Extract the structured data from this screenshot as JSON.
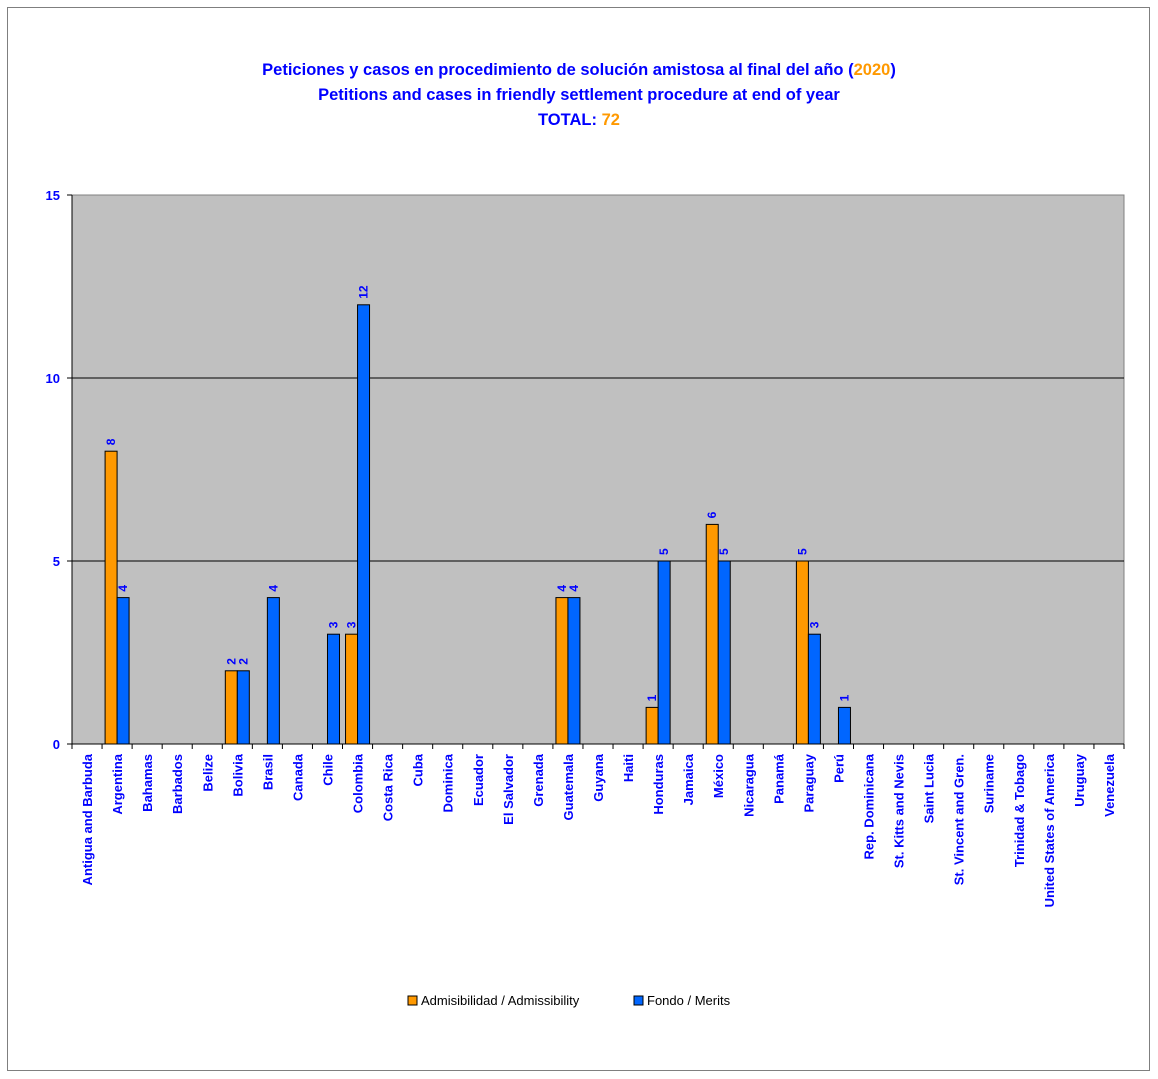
{
  "chart_data": {
    "type": "bar",
    "title_line1_prefix": "Peticiones y casos en procedimiento de solución amistosa al final del año (",
    "title_year": "2020",
    "title_line1_suffix": ")",
    "title_line2": "Petitions and cases in friendly settlement procedure at end of year",
    "total_label": "TOTAL:",
    "total_value": "72",
    "ylim": [
      0,
      15
    ],
    "yticks": [
      0,
      5,
      10,
      15
    ],
    "grid": true,
    "legend_position": "bottom",
    "categories": [
      "Antigua and Barbuda",
      "Argentina",
      "Bahamas",
      "Barbados",
      "Belize",
      "Bolivia",
      "Brasil",
      "Canada",
      "Chile",
      "Colombia",
      "Costa Rica",
      "Cuba",
      "Dominica",
      "Ecuador",
      "El Salvador",
      "Grenada",
      "Guatemala",
      "Guyana",
      "Haiti",
      "Honduras",
      "Jamaica",
      "México",
      "Nicaragua",
      "Panamá",
      "Paraguay",
      "Perú",
      "Rep. Dominicana",
      "St. Kitts and Nevis",
      "Saint Lucia",
      "St. Vincent and Gren.",
      "Suriname",
      "Trinidad & Tobago",
      "United States of America",
      "Uruguay",
      "Venezuela"
    ],
    "series": [
      {
        "name": "Admisibilidad / Admissibility",
        "color": "#ff9900",
        "values": [
          0,
          8,
          0,
          0,
          0,
          2,
          0,
          0,
          0,
          3,
          0,
          0,
          0,
          0,
          0,
          0,
          4,
          0,
          0,
          1,
          0,
          6,
          0,
          0,
          5,
          0,
          0,
          0,
          0,
          0,
          0,
          0,
          0,
          0,
          0
        ]
      },
      {
        "name": "Fondo / Merits",
        "color": "#0066ff",
        "values": [
          0,
          4,
          0,
          0,
          0,
          2,
          4,
          0,
          3,
          12,
          0,
          0,
          0,
          0,
          0,
          0,
          4,
          0,
          0,
          5,
          0,
          5,
          0,
          0,
          3,
          1,
          0,
          0,
          0,
          0,
          0,
          0,
          0,
          0,
          0
        ]
      }
    ],
    "colors": {
      "plot_background": "#c0c0c0",
      "axis_text": "#0000ff",
      "highlight": "#ff9900"
    }
  }
}
